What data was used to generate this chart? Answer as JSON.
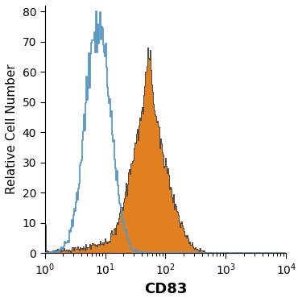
{
  "title": "",
  "xlabel": "CD83",
  "ylabel": "Relative Cell Number",
  "xlim_log": [
    1,
    10000
  ],
  "ylim": [
    0,
    82
  ],
  "yticks": [
    0,
    10,
    20,
    30,
    40,
    50,
    60,
    70,
    80
  ],
  "isotype_color": "#5b9ac4",
  "antibody_color": "#e08020",
  "antibody_fill": "#e08020",
  "isotype_peak_x_log": 0.88,
  "isotype_peak_y": 80,
  "antibody_peak_x_log": 1.78,
  "antibody_peak_y": 68,
  "background_color": "#ffffff",
  "xlabel_fontsize": 13,
  "ylabel_fontsize": 11,
  "tick_fontsize": 10,
  "n_bins": 300,
  "iso_log_mean": 0.88,
  "iso_log_std": 0.21,
  "iso_n": 15000,
  "ab_log_mean": 1.78,
  "ab_log_std": 0.28,
  "ab_n": 14000,
  "ab_shoulder_log_mean": 1.55,
  "ab_shoulder_log_std": 0.2,
  "ab_shoulder_n": 3000,
  "ab_spike_log_mean": 1.72,
  "ab_spike_log_std": 0.06,
  "ab_spike_n": 1500,
  "ab_bg_log_mean": 1.1,
  "ab_bg_log_std": 0.55,
  "ab_bg_n": 2000
}
